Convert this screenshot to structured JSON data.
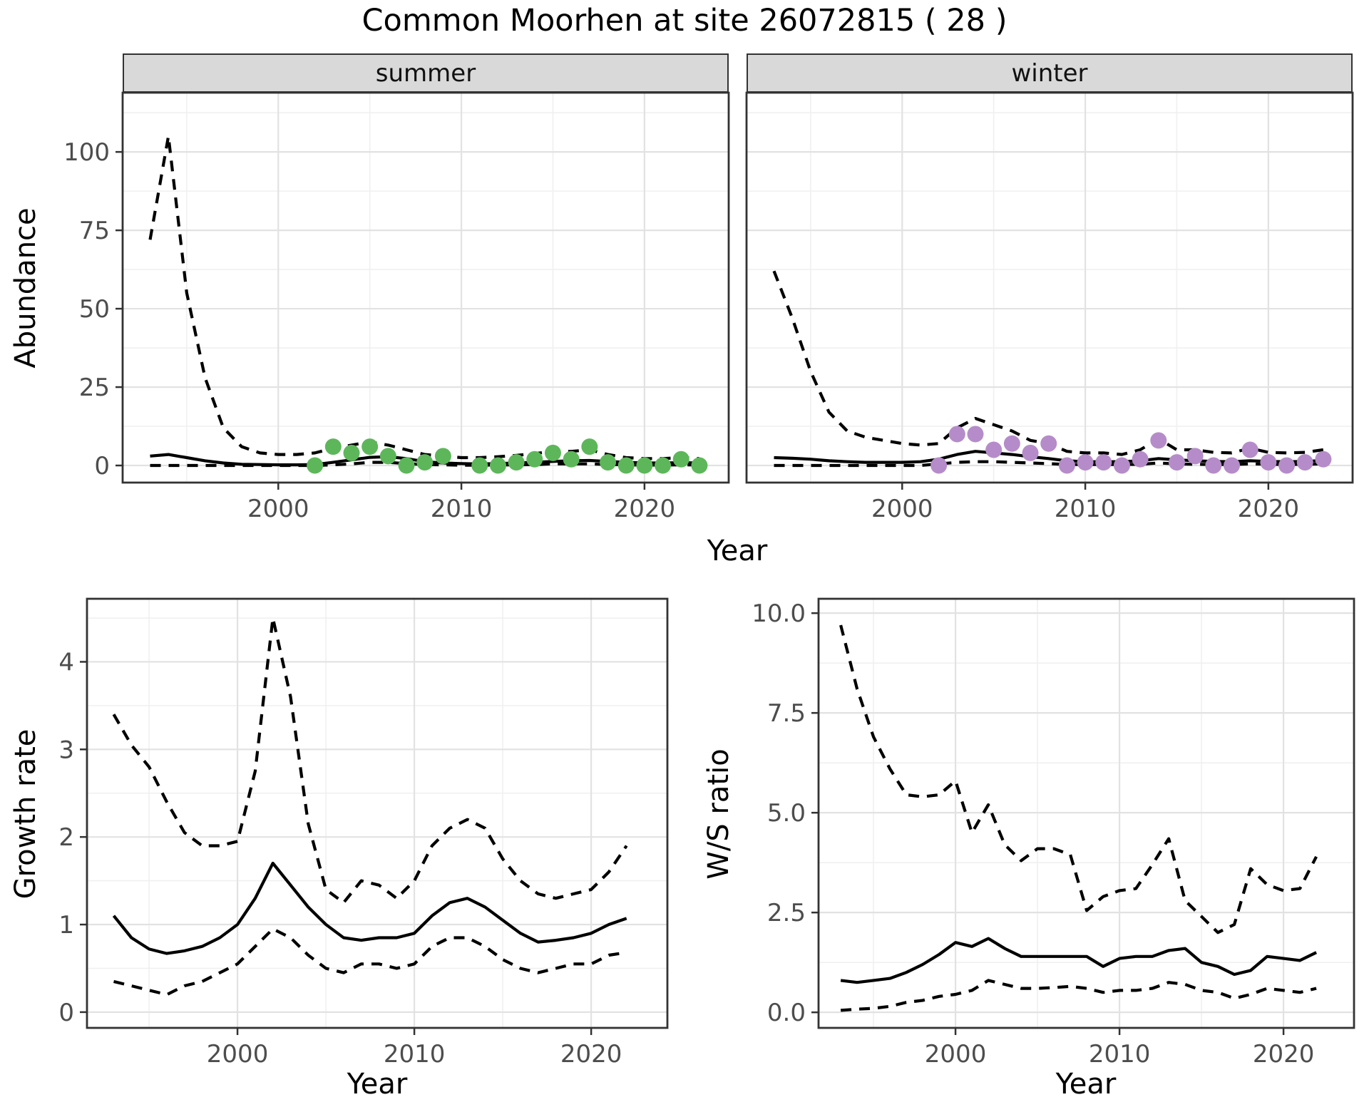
{
  "title": "Common Moorhen at site 26072815 ( 28 )",
  "facets": {
    "summer": "summer",
    "winter": "winter"
  },
  "axis_titles": {
    "abundance": "Abundance",
    "year": "Year",
    "growth_rate": "Growth rate",
    "ws_ratio": "W/S ratio"
  },
  "colors": {
    "summer_points": "#5db75a",
    "winter_points": "#b58cc9",
    "line": "#000000",
    "strip_fill": "#d9d9d9",
    "panel_border": "#333333",
    "grid_major": "#e2e2e2",
    "grid_minor": "#f0f0f0",
    "tick_text": "#4d4d4d",
    "background": "#ffffff"
  },
  "chart_data": [
    {
      "id": "abundance-summer",
      "type": "line",
      "title": "summer",
      "xlabel": "Year",
      "ylabel": "Abundance",
      "xlim": [
        1991.5,
        2024.6
      ],
      "ylim": [
        -5.45,
        118.9
      ],
      "grid": true,
      "legend": "none",
      "xticks": {
        "values": [
          2000,
          2010,
          2020
        ],
        "labels": [
          "2000",
          "2010",
          "2020"
        ],
        "minor": [
          1995,
          2005,
          2015
        ]
      },
      "yticks": {
        "values": [
          0,
          25,
          50,
          75,
          100
        ],
        "labels": [
          "0",
          "25",
          "50",
          "75",
          "100"
        ],
        "minor": [
          12.5,
          37.5,
          62.5,
          87.5,
          112.5
        ]
      },
      "x": [
        1993,
        1994,
        1995,
        1996,
        1997,
        1998,
        1999,
        2000,
        2001,
        2002,
        2003,
        2004,
        2005,
        2006,
        2007,
        2008,
        2009,
        2010,
        2011,
        2012,
        2013,
        2014,
        2015,
        2016,
        2017,
        2018,
        2019,
        2020,
        2021,
        2022,
        2023
      ],
      "series": [
        {
          "name": "upper_95ci",
          "style": "dashed",
          "values": [
            72,
            105,
            55,
            28,
            12,
            6,
            4,
            3.5,
            3.5,
            4,
            5.5,
            6.5,
            7.5,
            6.5,
            5,
            3.5,
            3,
            2.5,
            2.5,
            2.8,
            3.2,
            3.8,
            4.5,
            4.5,
            5,
            3.5,
            2.5,
            2.2,
            2.2,
            2.5,
            2.2
          ]
        },
        {
          "name": "modelled_mean",
          "style": "solid",
          "values": [
            3.0,
            3.5,
            2.5,
            1.5,
            0.8,
            0.4,
            0.3,
            0.2,
            0.2,
            0.3,
            1.0,
            1.8,
            2.6,
            2.8,
            2.2,
            1.2,
            0.8,
            0.6,
            0.5,
            0.6,
            0.8,
            1.0,
            1.3,
            1.5,
            1.6,
            1.3,
            1.0,
            0.8,
            0.8,
            0.9,
            0.8
          ]
        },
        {
          "name": "lower_95ci",
          "style": "dashed",
          "values": [
            0,
            0,
            0,
            0,
            0,
            0,
            0,
            0,
            0,
            0,
            0.2,
            0.5,
            1.0,
            1.0,
            0.6,
            0.3,
            0.2,
            0.1,
            0.1,
            0.15,
            0.2,
            0.3,
            0.5,
            0.5,
            0.5,
            0.3,
            0.2,
            0.15,
            0.15,
            0.2,
            0.15
          ]
        }
      ],
      "points": {
        "name": "observed_counts_summer",
        "color": "#5db75a",
        "x": [
          2002,
          2003,
          2004,
          2005,
          2006,
          2007,
          2008,
          2009,
          2011,
          2012,
          2013,
          2014,
          2015,
          2016,
          2017,
          2018,
          2019,
          2020,
          2021,
          2022,
          2023
        ],
        "y": [
          0,
          6,
          4,
          6,
          3,
          0,
          1,
          3,
          0,
          0,
          1,
          2,
          4,
          2,
          6,
          1,
          0,
          0,
          0,
          2,
          0
        ]
      }
    },
    {
      "id": "abundance-winter",
      "type": "line",
      "title": "winter",
      "xlabel": "Year",
      "ylabel": "Abundance",
      "xlim": [
        1991.5,
        2024.6
      ],
      "ylim": [
        -5.45,
        118.9
      ],
      "grid": true,
      "legend": "none",
      "xticks": {
        "values": [
          2000,
          2010,
          2020
        ],
        "labels": [
          "2000",
          "2010",
          "2020"
        ],
        "minor": [
          1995,
          2005,
          2015
        ]
      },
      "yticks": {
        "values": [
          0,
          25,
          50,
          75,
          100
        ],
        "labels": [
          "0",
          "25",
          "50",
          "75",
          "100"
        ],
        "minor": [
          12.5,
          37.5,
          62.5,
          87.5,
          112.5
        ]
      },
      "x": [
        1993,
        1994,
        1995,
        1996,
        1997,
        1998,
        1999,
        2000,
        2001,
        2002,
        2003,
        2004,
        2005,
        2006,
        2007,
        2008,
        2009,
        2010,
        2011,
        2012,
        2013,
        2014,
        2015,
        2016,
        2017,
        2018,
        2019,
        2020,
        2021,
        2022,
        2023
      ],
      "series": [
        {
          "name": "upper_95ci",
          "style": "dashed",
          "values": [
            62,
            47,
            30,
            17,
            11,
            9,
            8,
            7,
            6.5,
            7,
            12,
            15,
            13,
            11,
            8,
            7,
            4.5,
            4,
            4,
            3.5,
            5,
            8.5,
            5,
            5,
            4.2,
            4,
            5.5,
            4.2,
            4,
            4.2,
            5
          ]
        },
        {
          "name": "modelled_mean",
          "style": "solid",
          "values": [
            2.5,
            2.3,
            2.0,
            1.5,
            1.2,
            1.0,
            1.0,
            1.0,
            1.2,
            2.0,
            3.5,
            4.5,
            4.0,
            3.5,
            2.8,
            2.2,
            1.5,
            1.2,
            1.2,
            1.2,
            1.5,
            2.2,
            1.8,
            1.5,
            1.3,
            1.2,
            1.5,
            1.3,
            1.2,
            1.3,
            1.6
          ]
        },
        {
          "name": "lower_95ci",
          "style": "dashed",
          "values": [
            0,
            0,
            0,
            0,
            0,
            0,
            0,
            0,
            0,
            0.5,
            1.0,
            1.2,
            1.2,
            1.0,
            0.8,
            0.6,
            0.3,
            0.3,
            0.3,
            0.3,
            0.4,
            0.8,
            0.5,
            0.4,
            0.3,
            0.3,
            0.5,
            0.4,
            0.3,
            0.4,
            0.5
          ]
        }
      ],
      "points": {
        "name": "observed_counts_winter",
        "color": "#b58cc9",
        "x": [
          2002,
          2003,
          2004,
          2005,
          2006,
          2007,
          2008,
          2009,
          2010,
          2011,
          2012,
          2013,
          2014,
          2015,
          2016,
          2017,
          2018,
          2019,
          2020,
          2021,
          2022,
          2023
        ],
        "y": [
          0,
          10,
          10,
          5,
          7,
          4,
          7,
          0,
          1,
          1,
          0,
          2,
          8,
          1,
          3,
          0,
          0,
          5,
          1,
          0,
          1,
          2
        ]
      }
    },
    {
      "id": "growth-rate",
      "type": "line",
      "title": "",
      "xlabel": "Year",
      "ylabel": "Growth rate",
      "xlim": [
        1991.49,
        2024.31
      ],
      "ylim": [
        -0.18,
        4.72
      ],
      "grid": true,
      "legend": "none",
      "xticks": {
        "values": [
          2000,
          2010,
          2020
        ],
        "labels": [
          "2000",
          "2010",
          "2020"
        ],
        "minor": [
          1995,
          2005,
          2015
        ]
      },
      "yticks": {
        "values": [
          0,
          1,
          2,
          3,
          4
        ],
        "labels": [
          "0",
          "1",
          "2",
          "3",
          "4"
        ],
        "minor": [
          0.5,
          1.5,
          2.5,
          3.5,
          4.5
        ]
      },
      "x": [
        1993,
        1994,
        1995,
        1996,
        1997,
        1998,
        1999,
        2000,
        2001,
        2002,
        2003,
        2004,
        2005,
        2006,
        2007,
        2008,
        2009,
        2010,
        2011,
        2012,
        2013,
        2014,
        2015,
        2016,
        2017,
        2018,
        2019,
        2020,
        2021,
        2022
      ],
      "series": [
        {
          "name": "upper_95ci",
          "style": "dashed",
          "values": [
            3.4,
            3.05,
            2.8,
            2.4,
            2.05,
            1.9,
            1.9,
            1.95,
            2.75,
            4.5,
            3.6,
            2.15,
            1.4,
            1.25,
            1.5,
            1.45,
            1.3,
            1.5,
            1.9,
            2.1,
            2.2,
            2.1,
            1.75,
            1.5,
            1.35,
            1.3,
            1.35,
            1.4,
            1.6,
            1.9
          ]
        },
        {
          "name": "mean_growth_rate",
          "style": "solid",
          "values": [
            1.1,
            0.85,
            0.72,
            0.67,
            0.7,
            0.75,
            0.85,
            1.0,
            1.3,
            1.7,
            1.45,
            1.2,
            1.0,
            0.85,
            0.82,
            0.85,
            0.85,
            0.9,
            1.1,
            1.25,
            1.3,
            1.2,
            1.05,
            0.9,
            0.8,
            0.82,
            0.85,
            0.9,
            1.0,
            1.07
          ]
        },
        {
          "name": "lower_95ci",
          "style": "dashed",
          "values": [
            0.35,
            0.3,
            0.25,
            0.2,
            0.3,
            0.35,
            0.45,
            0.55,
            0.75,
            0.95,
            0.85,
            0.65,
            0.5,
            0.45,
            0.55,
            0.55,
            0.5,
            0.55,
            0.75,
            0.85,
            0.85,
            0.75,
            0.6,
            0.5,
            0.45,
            0.5,
            0.55,
            0.55,
            0.65,
            0.68
          ]
        }
      ]
    },
    {
      "id": "ws-ratio",
      "type": "line",
      "title": "",
      "xlabel": "Year",
      "ylabel": "W/S ratio",
      "xlim": [
        1991.65,
        2024.3
      ],
      "ylim": [
        -0.39,
        10.36
      ],
      "grid": true,
      "legend": "none",
      "xticks": {
        "values": [
          2000,
          2010,
          2020
        ],
        "labels": [
          "2000",
          "2010",
          "2020"
        ],
        "minor": [
          1995,
          2005,
          2015
        ]
      },
      "yticks": {
        "values": [
          0,
          2.5,
          5,
          7.5,
          10
        ],
        "labels": [
          "0.0",
          "2.5",
          "5.0",
          "7.5",
          "10.0"
        ],
        "minor": [
          1.25,
          3.75,
          6.25,
          8.75
        ]
      },
      "x": [
        1993,
        1994,
        1995,
        1996,
        1997,
        1998,
        1999,
        2000,
        2001,
        2002,
        2003,
        2004,
        2005,
        2006,
        2007,
        2008,
        2009,
        2010,
        2011,
        2012,
        2013,
        2014,
        2015,
        2016,
        2017,
        2018,
        2019,
        2020,
        2021,
        2022
      ],
      "series": [
        {
          "name": "upper_95ci",
          "style": "dashed",
          "values": [
            9.7,
            8.1,
            6.9,
            6.1,
            5.45,
            5.4,
            5.45,
            5.8,
            4.5,
            5.2,
            4.2,
            3.8,
            4.1,
            4.1,
            3.95,
            2.55,
            2.9,
            3.05,
            3.1,
            3.7,
            4.35,
            2.8,
            2.4,
            2.0,
            2.2,
            3.6,
            3.2,
            3.05,
            3.1,
            3.9
          ]
        },
        {
          "name": "mean_ws_ratio",
          "style": "solid",
          "values": [
            0.8,
            0.75,
            0.8,
            0.85,
            1.0,
            1.2,
            1.45,
            1.75,
            1.65,
            1.85,
            1.6,
            1.4,
            1.4,
            1.4,
            1.4,
            1.4,
            1.15,
            1.35,
            1.4,
            1.4,
            1.55,
            1.6,
            1.25,
            1.15,
            0.95,
            1.05,
            1.4,
            1.35,
            1.3,
            1.5
          ]
        },
        {
          "name": "lower_95ci",
          "style": "dashed",
          "values": [
            0.05,
            0.08,
            0.1,
            0.15,
            0.25,
            0.3,
            0.4,
            0.45,
            0.55,
            0.8,
            0.7,
            0.6,
            0.6,
            0.62,
            0.65,
            0.6,
            0.5,
            0.55,
            0.55,
            0.6,
            0.75,
            0.7,
            0.55,
            0.5,
            0.35,
            0.45,
            0.6,
            0.55,
            0.5,
            0.6
          ]
        }
      ]
    }
  ]
}
